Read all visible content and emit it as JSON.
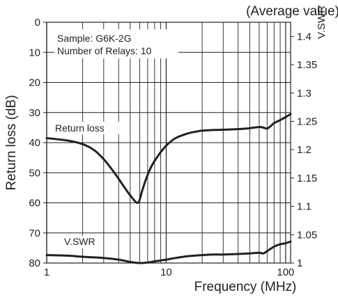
{
  "chart_data": {
    "type": "line",
    "title": "(Average value)",
    "xlabel": "Frequency (MHz)",
    "ylabel": "Return loss (dB)",
    "y2label": "V.SWR",
    "x_scale": "log",
    "xlim": [
      1,
      110
    ],
    "ylim": [
      0,
      80
    ],
    "y_inverted": true,
    "y2lim": [
      1.0,
      1.425
    ],
    "grid": true,
    "x_ticks": [
      1,
      10,
      100
    ],
    "x_minor_ticks": [
      2,
      3,
      4,
      5,
      6,
      7,
      8,
      9,
      20,
      30,
      40,
      50,
      60,
      70,
      80,
      90
    ],
    "y_ticks": [
      0,
      10,
      20,
      30,
      40,
      50,
      60,
      70,
      80
    ],
    "y2_ticks": [
      1.4,
      1.35,
      1.3,
      1.25,
      1.2,
      1.15,
      1.1,
      1.05,
      1
    ],
    "tick_labels_x": [
      "1",
      "10",
      "100"
    ],
    "tick_labels_y": [
      "0",
      "10",
      "20",
      "30",
      "40",
      "50",
      "60",
      "70",
      "80"
    ],
    "tick_labels_y2": [
      "1.4",
      "1.35",
      "1.3",
      "1.25",
      "1.2",
      "1.15",
      "1.1",
      "1.05",
      "1"
    ],
    "annotations": [
      "Sample: G6K-2G",
      "Number of Relays: 10"
    ],
    "series": [
      {
        "name": "Return loss",
        "axis": "left",
        "x": [
          1,
          1.5,
          2,
          2.5,
          3,
          3.5,
          4,
          4.5,
          5,
          5.5,
          5.8,
          6,
          6.3,
          6.8,
          7.5,
          8.5,
          10,
          12,
          15,
          18,
          20,
          25,
          30,
          40,
          50,
          60,
          65,
          70,
          75,
          80,
          90,
          100,
          110
        ],
        "y": [
          38.5,
          39.3,
          40.5,
          42.5,
          45.5,
          48.8,
          52,
          55,
          57.5,
          59.5,
          60,
          59,
          56,
          52,
          48,
          44.5,
          41,
          38.5,
          37,
          36.3,
          36,
          35.8,
          35.7,
          35.5,
          35.2,
          34.8,
          35,
          35.3,
          34.5,
          33.5,
          32.5,
          31.5,
          30.5
        ]
      },
      {
        "name": "V.SWR",
        "axis": "right",
        "x": [
          1,
          1.5,
          2,
          3,
          4,
          5,
          6,
          7,
          8,
          10,
          12,
          15,
          20,
          25,
          30,
          40,
          50,
          60,
          65,
          70,
          80,
          90,
          100,
          110
        ],
        "y": [
          1.014,
          1.013,
          1.011,
          1.009,
          1.006,
          1.002,
          1.0,
          1.001,
          1.003,
          1.006,
          1.009,
          1.012,
          1.014,
          1.015,
          1.015,
          1.016,
          1.017,
          1.018,
          1.017,
          1.021,
          1.029,
          1.033,
          1.035,
          1.038
        ]
      }
    ]
  }
}
